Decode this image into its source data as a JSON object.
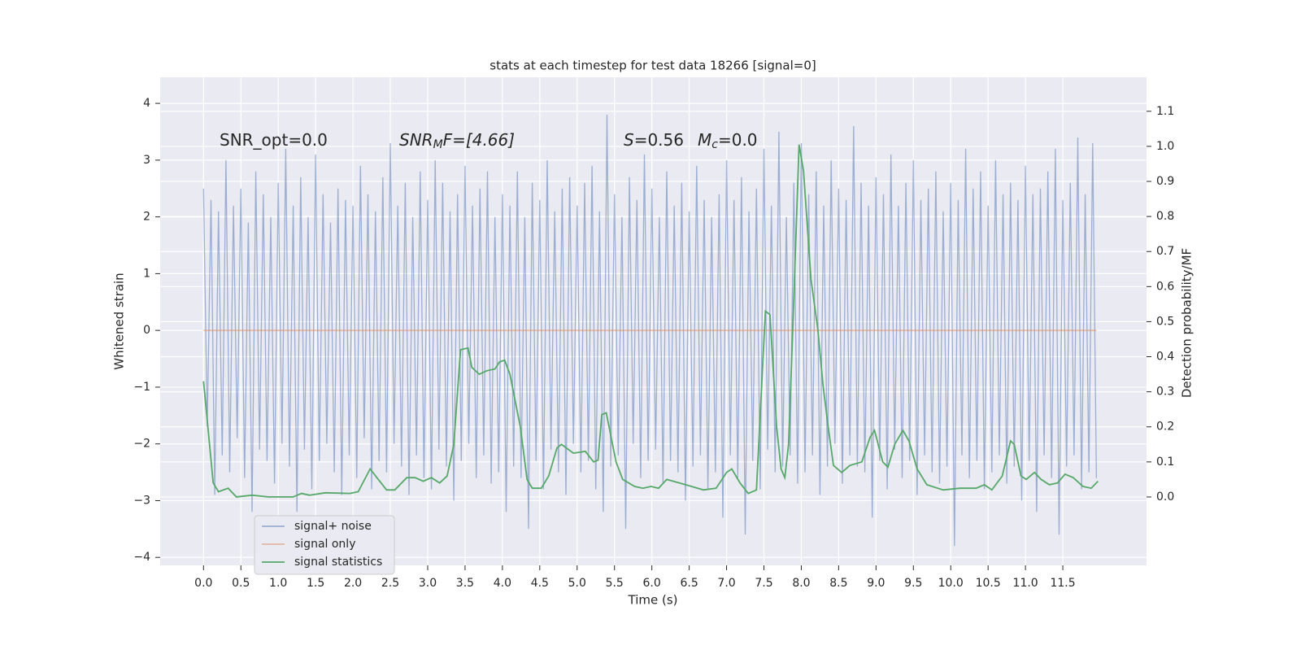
{
  "chart_data": {
    "type": "line",
    "title": "stats at each timestep for test data 18266 [signal=0]",
    "xlabel": "Time (s)",
    "ylabel": "Whitened strain",
    "y2label": "Detection probability/MF",
    "annotations": [
      {
        "main": "SNR_opt=0.0"
      },
      {
        "main": "SNR",
        "sub": "M",
        "tail": "F=[4.66]"
      },
      {
        "main": "S",
        "tail": "=0.56"
      },
      {
        "main": "M",
        "sub": "c",
        "tail": "=0.0"
      }
    ],
    "xlim": [
      -0.58,
      12.62
    ],
    "ylim": [
      -4.14,
      4.46
    ],
    "y2lim": [
      -0.195,
      1.197
    ],
    "xticks": [
      {
        "value": 0,
        "label": "0.0"
      },
      0.5,
      {
        "value": 1,
        "label": "1.0"
      },
      1.5,
      {
        "value": 2,
        "label": "2.0"
      },
      2.5,
      {
        "value": 3,
        "label": "3.0"
      },
      3.5,
      {
        "value": 4,
        "label": "4.0"
      },
      4.5,
      {
        "value": 5,
        "label": "5.0"
      },
      5.5,
      {
        "value": 6,
        "label": "6.0"
      },
      6.5,
      {
        "value": 7,
        "label": "7.0"
      },
      7.5,
      {
        "value": 8,
        "label": "8.0"
      },
      8.5,
      {
        "value": 9,
        "label": "9.0"
      },
      9.5,
      {
        "value": 10,
        "label": "10.0"
      },
      10.5,
      {
        "value": 11,
        "label": "11.0"
      },
      11.5
    ],
    "yticks": [
      {
        "value": -4,
        "label": "−4"
      },
      {
        "value": -3,
        "label": "−3"
      },
      {
        "value": -2,
        "label": "−2"
      },
      {
        "value": -1,
        "label": "−1"
      },
      0,
      1,
      2,
      3,
      4
    ],
    "y2ticks": [
      {
        "value": 0,
        "label": "0.0"
      },
      0.1,
      0.2,
      0.3,
      0.4,
      0.5,
      0.6,
      0.7,
      0.8,
      0.9,
      {
        "value": 1,
        "label": "1.0"
      },
      1.1
    ],
    "grid": true,
    "legend": "lower left",
    "series": [
      {
        "name": "signal+ noise",
        "color": "#4c72b0",
        "opacity": 0.5,
        "x": [
          0,
          0.05,
          0.1,
          0.15,
          0.2,
          0.25,
          0.3,
          0.35,
          0.4,
          0.45,
          0.5,
          0.55,
          0.6,
          0.65,
          0.7,
          0.75,
          0.8,
          0.85,
          0.9,
          0.95,
          1,
          1.05,
          1.1,
          1.15,
          1.2,
          1.25,
          1.3,
          1.35,
          1.4,
          1.45,
          1.5,
          1.55,
          1.6,
          1.65,
          1.7,
          1.75,
          1.8,
          1.85,
          1.9,
          1.95,
          2,
          2.05,
          2.1,
          2.15,
          2.2,
          2.25,
          2.3,
          2.35,
          2.4,
          2.45,
          2.5,
          2.55,
          2.6,
          2.65,
          2.7,
          2.75,
          2.8,
          2.85,
          2.9,
          2.95,
          3,
          3.05,
          3.1,
          3.15,
          3.2,
          3.25,
          3.3,
          3.35,
          3.4,
          3.45,
          3.5,
          3.55,
          3.6,
          3.65,
          3.7,
          3.75,
          3.8,
          3.85,
          3.9,
          3.95,
          4,
          4.05,
          4.1,
          4.15,
          4.2,
          4.25,
          4.3,
          4.35,
          4.4,
          4.45,
          4.5,
          4.55,
          4.6,
          4.65,
          4.7,
          4.75,
          4.8,
          4.85,
          4.9,
          4.95,
          5,
          5.05,
          5.1,
          5.15,
          5.2,
          5.25,
          5.3,
          5.35,
          5.4,
          5.45,
          5.5,
          5.55,
          5.6,
          5.65,
          5.7,
          5.75,
          5.8,
          5.85,
          5.9,
          5.95,
          6,
          6.05,
          6.1,
          6.15,
          6.2,
          6.25,
          6.3,
          6.35,
          6.4,
          6.45,
          6.5,
          6.55,
          6.6,
          6.65,
          6.7,
          6.75,
          6.8,
          6.85,
          6.9,
          6.95,
          7,
          7.05,
          7.1,
          7.15,
          7.2,
          7.25,
          7.3,
          7.35,
          7.4,
          7.45,
          7.5,
          7.55,
          7.6,
          7.65,
          7.7,
          7.75,
          7.8,
          7.85,
          7.9,
          7.95,
          8,
          8.05,
          8.1,
          8.15,
          8.2,
          8.25,
          8.3,
          8.35,
          8.4,
          8.45,
          8.5,
          8.55,
          8.6,
          8.65,
          8.7,
          8.75,
          8.8,
          8.85,
          8.9,
          8.95,
          9,
          9.05,
          9.1,
          9.15,
          9.2,
          9.25,
          9.3,
          9.35,
          9.4,
          9.45,
          9.5,
          9.55,
          9.6,
          9.65,
          9.7,
          9.75,
          9.8,
          9.85,
          9.9,
          9.95,
          10,
          10.05,
          10.1,
          10.15,
          10.2,
          10.25,
          10.3,
          10.35,
          10.4,
          10.45,
          10.5,
          10.55,
          10.6,
          10.65,
          10.7,
          10.75,
          10.8,
          10.85,
          10.9,
          10.95,
          11,
          11.05,
          11.1,
          11.15,
          11.2,
          11.25,
          11.3,
          11.35,
          11.4,
          11.45,
          11.5,
          11.55,
          11.6,
          11.65,
          11.7,
          11.75,
          11.8,
          11.85,
          11.9,
          11.95
        ],
        "values": [
          2.5,
          -1.7,
          2.3,
          -2.9,
          2.1,
          -2.2,
          3.0,
          -2.5,
          2.2,
          -1.9,
          2.5,
          -2.6,
          1.9,
          -3.2,
          2.8,
          -2.1,
          2.4,
          -2.3,
          2.0,
          -2.7,
          2.6,
          -2.0,
          3.2,
          -2.4,
          2.2,
          -3.2,
          2.7,
          -2.1,
          2.0,
          -2.8,
          3.1,
          -2.3,
          2.4,
          -2.0,
          1.9,
          -2.5,
          2.5,
          -2.9,
          2.3,
          -2.2,
          2.2,
          -2.6,
          2.9,
          -1.9,
          2.4,
          -2.8,
          2.1,
          -2.3,
          2.7,
          -2.5,
          3.3,
          -2.0,
          2.2,
          -2.4,
          2.6,
          -2.9,
          2.0,
          -2.2,
          2.8,
          -2.6,
          2.3,
          -2.8,
          3.0,
          -2.1,
          2.6,
          -2.4,
          2.1,
          -3.0,
          2.4,
          -2.3,
          2.9,
          -2.0,
          2.2,
          -2.6,
          2.5,
          -2.2,
          2.8,
          -2.7,
          2.0,
          -2.5,
          2.4,
          -3.2,
          2.2,
          -2.4,
          2.8,
          -2.6,
          2.0,
          -3.5,
          2.6,
          -2.3,
          2.3,
          -2.8,
          3.0,
          -2.1,
          2.1,
          -2.5,
          2.5,
          -2.9,
          2.7,
          -2.0,
          2.2,
          -2.5,
          2.6,
          -2.3,
          2.9,
          -2.8,
          2.1,
          -3.2,
          3.8,
          -2.4,
          2.4,
          -2.2,
          2.0,
          -3.5,
          2.7,
          -2.0,
          2.3,
          -2.6,
          3.1,
          -2.3,
          2.5,
          -2.1,
          2.0,
          -2.7,
          2.8,
          -2.3,
          2.2,
          -2.5,
          2.6,
          -3.0,
          2.1,
          -2.4,
          2.9,
          -2.2,
          2.3,
          -2.8,
          2.0,
          -2.5,
          2.4,
          -3.3,
          3.0,
          -2.2,
          2.3,
          -2.6,
          2.7,
          -3.6,
          2.1,
          -2.3,
          2.5,
          -2.8,
          3.2,
          -2.1,
          2.2,
          -2.5,
          3.5,
          -2.4,
          2.0,
          -2.2,
          2.6,
          -2.7,
          3.3,
          -2.5,
          2.4,
          -2.2,
          2.8,
          -2.9,
          2.2,
          -2.4,
          3.0,
          -2.0,
          2.5,
          -2.7,
          2.3,
          -2.2,
          3.6,
          -2.4,
          2.6,
          -2.5,
          2.2,
          -3.3,
          2.7,
          -2.3,
          2.4,
          -2.8,
          3.1,
          -2.1,
          2.2,
          -2.6,
          2.6,
          -2.3,
          3.0,
          -2.9,
          2.3,
          -2.2,
          2.5,
          -2.5,
          2.8,
          -2.7,
          2.1,
          -2.4,
          2.6,
          -3.8,
          2.3,
          -2.2,
          3.2,
          -2.6,
          2.5,
          -2.3,
          2.8,
          -2.8,
          2.2,
          -2.5,
          3.0,
          -2.2,
          2.4,
          -2.7,
          2.6,
          -2.4,
          2.3,
          -3.0,
          2.9,
          -2.3,
          2.4,
          -3.2,
          2.5,
          -2.2,
          2.8,
          -2.6,
          3.2,
          -3.6,
          2.3,
          -2.4,
          2.6,
          -2.2,
          3.4,
          -2.8,
          2.4,
          -2.5,
          3.3,
          -2.6
        ]
      },
      {
        "name": "signal only",
        "color": "#dd8452",
        "opacity": 0.5,
        "x": [
          0,
          11.95
        ],
        "values": [
          0,
          0
        ]
      },
      {
        "name": "signal statistics",
        "color": "#55a868",
        "opacity": 1,
        "axis": "y2",
        "x": [
          0,
          0.13,
          0.2,
          0.33,
          0.44,
          0.65,
          0.87,
          1.2,
          1.31,
          1.42,
          1.63,
          1.96,
          2.07,
          2.23,
          2.34,
          2.45,
          2.56,
          2.72,
          2.83,
          2.94,
          3.05,
          3.16,
          3.26,
          3.35,
          3.44,
          3.54,
          3.59,
          3.69,
          3.79,
          3.9,
          3.96,
          4.03,
          4.1,
          4.24,
          4.33,
          4.4,
          4.52,
          4.62,
          4.73,
          4.79,
          4.95,
          5.11,
          5.22,
          5.28,
          5.33,
          5.39,
          5.52,
          5.61,
          5.77,
          5.88,
          5.99,
          6.09,
          6.2,
          6.37,
          6.53,
          6.69,
          6.86,
          7.0,
          7.07,
          7.18,
          7.29,
          7.4,
          7.52,
          7.58,
          7.67,
          7.73,
          7.78,
          7.83,
          7.89,
          7.97,
          8.03,
          8.13,
          8.22,
          8.29,
          8.36,
          8.43,
          8.54,
          8.65,
          8.81,
          8.92,
          8.98,
          9.09,
          9.16,
          9.25,
          9.36,
          9.44,
          9.55,
          9.68,
          9.9,
          10.12,
          10.34,
          10.45,
          10.55,
          10.69,
          10.8,
          10.85,
          10.94,
          11.01,
          11.12,
          11.21,
          11.32,
          11.43,
          11.53,
          11.64,
          11.77,
          11.88,
          11.97
        ],
        "values": [
          0.33,
          0.04,
          0.015,
          0.025,
          0.0,
          0.005,
          0.0,
          0.0,
          0.01,
          0.005,
          0.012,
          0.01,
          0.015,
          0.08,
          0.05,
          0.02,
          0.02,
          0.055,
          0.055,
          0.045,
          0.055,
          0.04,
          0.06,
          0.15,
          0.42,
          0.425,
          0.37,
          0.35,
          0.36,
          0.365,
          0.385,
          0.39,
          0.35,
          0.2,
          0.05,
          0.025,
          0.025,
          0.06,
          0.14,
          0.15,
          0.125,
          0.13,
          0.1,
          0.105,
          0.235,
          0.24,
          0.1,
          0.05,
          0.03,
          0.025,
          0.03,
          0.025,
          0.05,
          0.04,
          0.03,
          0.02,
          0.025,
          0.07,
          0.08,
          0.04,
          0.01,
          0.02,
          0.53,
          0.52,
          0.2,
          0.08,
          0.055,
          0.15,
          0.5,
          1.005,
          0.93,
          0.62,
          0.48,
          0.32,
          0.2,
          0.09,
          0.07,
          0.09,
          0.1,
          0.17,
          0.19,
          0.1,
          0.085,
          0.15,
          0.19,
          0.16,
          0.08,
          0.035,
          0.02,
          0.025,
          0.025,
          0.035,
          0.02,
          0.06,
          0.16,
          0.15,
          0.06,
          0.05,
          0.07,
          0.05,
          0.035,
          0.04,
          0.065,
          0.055,
          0.03,
          0.025,
          0.045
        ]
      }
    ]
  }
}
